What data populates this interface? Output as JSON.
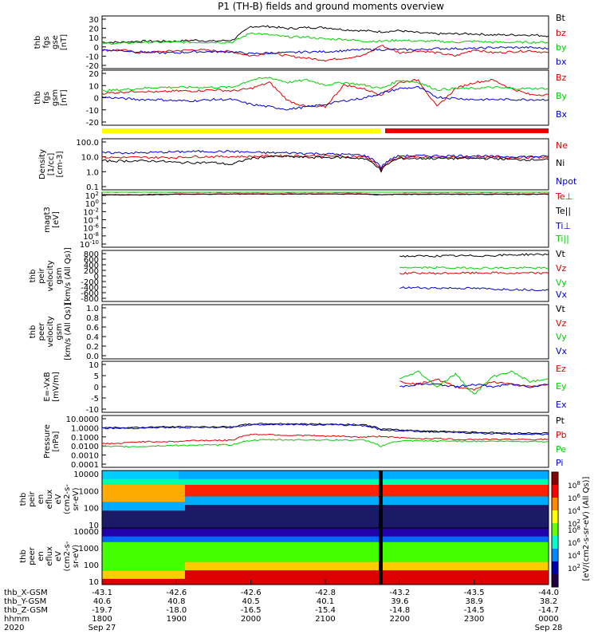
{
  "title": "P1 (TH-B) fields and ground moments overview",
  "colors": {
    "black": "#000000",
    "red": "#e00000",
    "green": "#00d000",
    "blue": "#0000d0",
    "yellow": "#ffff00",
    "status_red": "#ee0000"
  },
  "chart_data": [
    {
      "type": "line",
      "ylabel": [
        "thb",
        "fgs",
        "gse",
        "[nT]"
      ],
      "ylim": [
        -20,
        30
      ],
      "yticks": [
        "30",
        "20",
        "10",
        "0",
        "-10",
        "-20"
      ],
      "series": [
        {
          "name": "Bt",
          "color": "black",
          "values": [
            5,
            5,
            6,
            6,
            6,
            7,
            6,
            7,
            20,
            20,
            18,
            19,
            19,
            17,
            16,
            15,
            16,
            14,
            13,
            13,
            13,
            12,
            12,
            12,
            11
          ]
        },
        {
          "name": "bz",
          "color": "red",
          "values": [
            -3,
            -2,
            -5,
            -4,
            -3,
            -2,
            -3,
            -4,
            -8,
            -5,
            -8,
            -10,
            -12,
            -10,
            -8,
            2,
            -5,
            -3,
            -5,
            -8,
            -2,
            -5,
            -4,
            -3,
            -5
          ]
        },
        {
          "name": "by",
          "color": "green",
          "values": [
            4,
            4,
            5,
            5,
            5,
            5,
            5,
            5,
            14,
            12,
            10,
            10,
            8,
            8,
            6,
            6,
            7,
            6,
            6,
            5,
            6,
            5,
            5,
            5,
            5
          ]
        },
        {
          "name": "bx",
          "color": "blue",
          "values": [
            -2,
            -3,
            -4,
            -5,
            -5,
            -4,
            -4,
            -4,
            -6,
            -5,
            -5,
            -4,
            -4,
            -3,
            -2,
            -2,
            -2,
            -2,
            -1,
            -1,
            -1,
            0,
            0,
            0,
            -1
          ]
        }
      ]
    },
    {
      "type": "line",
      "ylabel": [
        "thb",
        "fgs",
        "gsm",
        "[nT]"
      ],
      "ylim": [
        -25,
        20
      ],
      "yticks": [
        "20",
        "10",
        "0",
        "-10",
        "-20"
      ],
      "series": [
        {
          "name": "Bz",
          "color": "red",
          "values": [
            1,
            2,
            3,
            2,
            3,
            3,
            4,
            3,
            5,
            10,
            -5,
            -10,
            -10,
            8,
            5,
            0,
            10,
            12,
            -10,
            5,
            10,
            12,
            5,
            0,
            0
          ]
        },
        {
          "name": "By",
          "color": "green",
          "values": [
            3,
            4,
            5,
            6,
            6,
            6,
            6,
            6,
            12,
            14,
            10,
            12,
            8,
            10,
            8,
            5,
            12,
            10,
            4,
            5,
            5,
            6,
            5,
            5,
            5
          ]
        },
        {
          "name": "Bx",
          "color": "blue",
          "values": [
            -2,
            -3,
            -4,
            -4,
            -5,
            -5,
            -4,
            -4,
            -8,
            -10,
            -12,
            -10,
            -8,
            -5,
            -3,
            1,
            5,
            6,
            -2,
            -3,
            -4,
            -4,
            -4,
            -4,
            -4
          ]
        }
      ]
    },
    {
      "type": "line",
      "ylabel": [
        "Density",
        "[1/cc]",
        "[cm^-3]"
      ],
      "ylog": true,
      "ylim": [
        0.1,
        100
      ],
      "yticks": [
        "100.0",
        "10.0",
        "1.0",
        "0.1"
      ],
      "series": [
        {
          "name": "Ne",
          "color": "red",
          "values": [
            8,
            8,
            8,
            8,
            8,
            9,
            9,
            9,
            9,
            10,
            10,
            10,
            10,
            9,
            9,
            1.5,
            8,
            8,
            8,
            8,
            8,
            8,
            8,
            8,
            8
          ]
        },
        {
          "name": "Ni",
          "color": "black",
          "values": [
            5,
            5,
            5,
            5,
            4,
            4,
            4,
            3,
            7,
            9,
            9,
            8,
            8,
            8,
            7,
            1.2,
            7,
            7,
            7,
            7,
            7,
            7,
            6,
            6,
            6
          ]
        },
        {
          "name": "Npot",
          "color": "blue",
          "values": [
            15,
            15,
            15,
            16,
            17,
            18,
            18,
            18,
            16,
            15,
            15,
            14,
            13,
            12,
            11,
            2,
            10,
            10,
            10,
            10,
            10,
            9,
            9,
            9,
            9
          ]
        }
      ]
    },
    {
      "type": "line",
      "ylabel": [
        "magt3",
        "[eV]"
      ],
      "ylog": true,
      "ylim": [
        1e-10,
        100
      ],
      "yticks": [
        "10^2",
        "10^0",
        "10^-2",
        "10^-4",
        "10^-6",
        "10^-8",
        "10^-10"
      ],
      "series": [
        {
          "name": "Te⊥",
          "color": "red",
          "values": [
            30,
            30,
            30,
            35,
            40,
            40,
            40,
            45,
            45,
            45,
            45,
            45,
            45,
            45,
            45,
            30,
            40,
            40,
            40,
            40,
            40,
            40,
            40,
            40,
            40
          ]
        },
        {
          "name": "Te||",
          "color": "black",
          "values": [
            25,
            25,
            25,
            30,
            35,
            35,
            35,
            40,
            40,
            40,
            40,
            40,
            40,
            40,
            40,
            25,
            35,
            35,
            35,
            35,
            35,
            35,
            35,
            35,
            35
          ]
        },
        {
          "name": "Ti⊥",
          "color": "blue",
          "values": [
            100,
            100,
            100,
            100,
            100,
            100,
            100,
            100,
            100,
            100,
            100,
            100,
            100,
            100,
            100,
            400,
            100,
            100,
            100,
            100,
            100,
            100,
            100,
            100,
            100
          ]
        },
        {
          "name": "Ti||",
          "color": "green",
          "values": [
            120,
            120,
            120,
            120,
            120,
            120,
            120,
            120,
            120,
            120,
            120,
            120,
            120,
            120,
            120,
            500,
            120,
            120,
            120,
            120,
            120,
            120,
            120,
            120,
            120
          ]
        }
      ]
    },
    {
      "type": "line",
      "ylabel": [
        "thb",
        "peir",
        "velocity",
        "gsm",
        "[km/s (All Qs)]"
      ],
      "ylim": [
        -900,
        700
      ],
      "yticks": [
        "800",
        "600",
        "400",
        "200",
        "0",
        "-200",
        "-400",
        "-600",
        "-800"
      ],
      "series": [
        {
          "name": "Vt",
          "color": "black",
          "x": [
            16,
            17,
            18,
            19,
            20,
            21,
            22,
            23,
            24
          ],
          "values": [
            520,
            520,
            525,
            530,
            530,
            540,
            560,
            575,
            575
          ]
        },
        {
          "name": "Vz",
          "color": "red",
          "x": [
            16,
            17,
            18,
            19,
            20,
            21,
            22,
            23,
            24
          ],
          "values": [
            -20,
            -10,
            -20,
            -10,
            -10,
            0,
            -20,
            -10,
            -20
          ]
        },
        {
          "name": "Vy",
          "color": "green",
          "x": [
            16,
            17,
            18,
            19,
            20,
            21,
            22,
            23,
            24
          ],
          "values": [
            170,
            160,
            160,
            150,
            150,
            150,
            150,
            150,
            140
          ]
        },
        {
          "name": "Vx",
          "color": "blue",
          "x": [
            16,
            17,
            18,
            19,
            20,
            21,
            22,
            23,
            24
          ],
          "values": [
            -470,
            -470,
            -480,
            -480,
            -490,
            -510,
            -520,
            -530,
            -540
          ]
        }
      ]
    },
    {
      "type": "line",
      "ylabel": [
        "thb",
        "peer",
        "velocity",
        "gsm",
        "[km/s (All Qs)]"
      ],
      "ylim": [
        0,
        1
      ],
      "yticks": [
        "1.0",
        "0.8",
        "0.6",
        "0.4",
        "0.2",
        "0.0"
      ],
      "series": [
        {
          "name": "Vt",
          "color": "black",
          "values": []
        },
        {
          "name": "Vz",
          "color": "red",
          "values": []
        },
        {
          "name": "Vy",
          "color": "green",
          "values": []
        },
        {
          "name": "Vx",
          "color": "blue",
          "values": []
        }
      ]
    },
    {
      "type": "line",
      "ylabel": [
        "E=-VxB",
        "[mV/m]"
      ],
      "ylim": [
        -10,
        10
      ],
      "yticks": [
        "10",
        "5",
        "0",
        "-5",
        "-10"
      ],
      "series": [
        {
          "name": "Ez",
          "color": "red",
          "x": [
            16,
            17,
            18,
            19,
            20,
            21,
            22,
            23,
            24
          ],
          "values": [
            2,
            1,
            3,
            0,
            -1,
            2,
            1,
            0,
            1
          ]
        },
        {
          "name": "Ey",
          "color": "green",
          "x": [
            16,
            17,
            18,
            19,
            20,
            21,
            22,
            23,
            24
          ],
          "values": [
            3,
            6,
            0,
            5,
            -3,
            4,
            6,
            2,
            3
          ]
        },
        {
          "name": "Ex",
          "color": "blue",
          "x": [
            16,
            17,
            18,
            19,
            20,
            21,
            22,
            23,
            24
          ],
          "values": [
            0,
            1,
            1,
            0,
            1,
            0,
            1,
            0,
            1
          ]
        }
      ]
    },
    {
      "type": "line",
      "ylabel": [
        "Pressure",
        "[nPa]"
      ],
      "ylog": true,
      "ylim": [
        0.0001,
        10
      ],
      "yticks": [
        "10.0000",
        "1.0000",
        "0.1000",
        "0.0100",
        "0.0010",
        "0.0001"
      ],
      "series": [
        {
          "name": "Pt",
          "color": "black",
          "values": [
            0.7,
            0.7,
            0.7,
            0.8,
            0.8,
            0.8,
            0.8,
            0.8,
            1.5,
            1.6,
            1.6,
            1.5,
            1.5,
            1.4,
            1.3,
            0.5,
            0.4,
            0.35,
            0.3,
            0.28,
            0.25,
            0.22,
            0.2,
            0.2,
            0.2
          ]
        },
        {
          "name": "Pb",
          "color": "red",
          "values": [
            0.02,
            0.02,
            0.03,
            0.03,
            0.03,
            0.04,
            0.04,
            0.04,
            0.15,
            0.15,
            0.12,
            0.12,
            0.1,
            0.1,
            0.08,
            0.1,
            0.07,
            0.06,
            0.06,
            0.05,
            0.05,
            0.05,
            0.05,
            0.05,
            0.05
          ]
        },
        {
          "name": "Pe",
          "color": "green",
          "values": [
            0.01,
            0.01,
            0.01,
            0.012,
            0.013,
            0.014,
            0.014,
            0.015,
            0.04,
            0.045,
            0.045,
            0.045,
            0.044,
            0.043,
            0.042,
            0.01,
            0.035,
            0.035,
            0.034,
            0.034,
            0.033,
            0.033,
            0.032,
            0.032,
            0.032
          ]
        },
        {
          "name": "Pi",
          "color": "blue",
          "values": [
            0.6,
            0.6,
            0.6,
            0.7,
            0.7,
            0.7,
            0.7,
            0.7,
            1.3,
            1.4,
            1.4,
            1.3,
            1.3,
            1.2,
            1.1,
            0.4,
            0.35,
            0.3,
            0.25,
            0.23,
            0.2,
            0.18,
            0.17,
            0.16,
            0.15
          ]
        }
      ]
    },
    {
      "type": "heatmap",
      "ylabel": [
        "thb",
        "peir",
        "en",
        "eflux",
        "eV",
        "(cm^2-s-",
        "sr-eV)"
      ],
      "ylog": true,
      "yticks": [
        "10000",
        "1000",
        "100",
        "10"
      ]
    },
    {
      "type": "heatmap",
      "ylabel": [
        "thb",
        "peer",
        "en",
        "eflux",
        "eV",
        "(cm^2-s-",
        "sr-eV)"
      ],
      "ylog": true,
      "yticks": [
        "10000",
        "1000",
        "100",
        "10"
      ]
    }
  ],
  "colorbar": {
    "label": "[eV/(cm^2-s-sr-eV) (All Qs)]",
    "ticks_top": [
      "10^8",
      "10^6",
      "10^4",
      "10^2"
    ],
    "ticks_bottom": [
      "10^8",
      "10^6",
      "10^4",
      "10^2"
    ]
  },
  "xaxis": {
    "rows": [
      {
        "label": "thb_X-GSM",
        "values": [
          "-43.1",
          "-42.6",
          "-42.6",
          "-42.8",
          "-43.2",
          "-43.5",
          "-44.0"
        ]
      },
      {
        "label": "thb_Y-GSM",
        "values": [
          "40.6",
          "40.8",
          "40.5",
          "40.1",
          "39.6",
          "38.9",
          "38.2"
        ]
      },
      {
        "label": "thb_Z-GSM",
        "values": [
          "-19.7",
          "-18.0",
          "-16.5",
          "-15.4",
          "-14.8",
          "-14.5",
          "-14.7"
        ]
      },
      {
        "label": "hhmm",
        "values": [
          "1800",
          "1900",
          "2000",
          "2100",
          "2200",
          "2300",
          "0000"
        ]
      }
    ],
    "year": "2020",
    "date_start": "Sep 27",
    "date_end": "Sep 28"
  }
}
